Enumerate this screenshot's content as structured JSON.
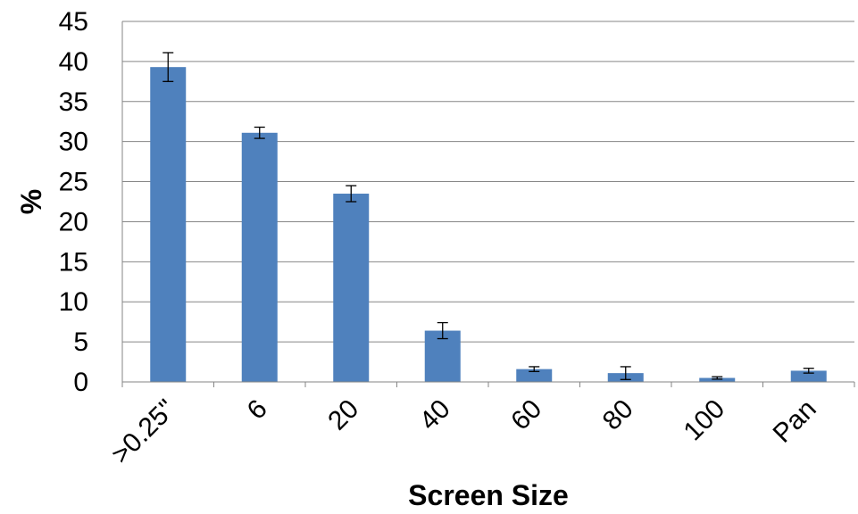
{
  "chart_data": {
    "type": "bar",
    "categories": [
      ">0.25\"",
      "6",
      "20",
      "40",
      "60",
      "80",
      "100",
      "Pan"
    ],
    "values": [
      39.3,
      31.1,
      23.5,
      6.4,
      1.6,
      1.1,
      0.5,
      1.4
    ],
    "error": [
      1.8,
      0.7,
      1.0,
      1.0,
      0.3,
      0.8,
      0.15,
      0.3
    ],
    "title": "",
    "xlabel": "Screen Size",
    "ylabel": "%",
    "ylim": [
      0,
      45
    ],
    "yticks": [
      "0",
      "5",
      "10",
      "15",
      "20",
      "25",
      "30",
      "35",
      "40",
      "45"
    ],
    "grid": true,
    "legend": "none",
    "bar_color": "#4F81BD",
    "grid_color": "#868686"
  }
}
